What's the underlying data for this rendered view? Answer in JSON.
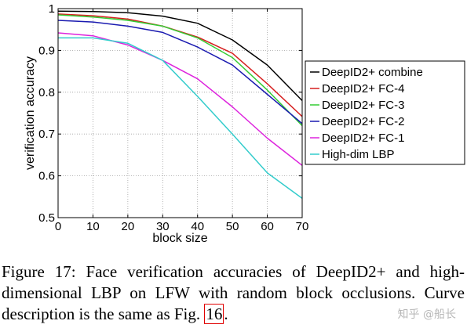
{
  "chart_data": {
    "type": "line",
    "xlabel": "block size",
    "ylabel": "verification accuracy",
    "xlim": [
      0,
      70
    ],
    "ylim": [
      0.5,
      1
    ],
    "x_ticks": [
      "0",
      "10",
      "20",
      "30",
      "40",
      "50",
      "60",
      "70"
    ],
    "y_ticks": [
      "0.5",
      "0.6",
      "0.7",
      "0.8",
      "0.9",
      "1"
    ],
    "grid": true,
    "legend_position": "right",
    "x": [
      0,
      10,
      20,
      30,
      40,
      50,
      60,
      70
    ],
    "series": [
      {
        "name": "DeepID2+ combine",
        "color": "#000000",
        "values": [
          0.994,
          0.993,
          0.99,
          0.982,
          0.965,
          0.925,
          0.865,
          0.78
        ]
      },
      {
        "name": "DeepID2+ FC-4",
        "color": "#d62020",
        "values": [
          0.987,
          0.983,
          0.975,
          0.958,
          0.932,
          0.893,
          0.82,
          0.742
        ]
      },
      {
        "name": "DeepID2+ FC-3",
        "color": "#33cc33",
        "values": [
          0.985,
          0.98,
          0.972,
          0.958,
          0.93,
          0.883,
          0.805,
          0.72
        ]
      },
      {
        "name": "DeepID2+ FC-2",
        "color": "#1a1ab0",
        "values": [
          0.972,
          0.968,
          0.958,
          0.943,
          0.908,
          0.865,
          0.795,
          0.725
        ]
      },
      {
        "name": "DeepID2+ FC-1",
        "color": "#dd22dd",
        "values": [
          0.942,
          0.935,
          0.913,
          0.876,
          0.832,
          0.765,
          0.69,
          0.625
        ]
      },
      {
        "name": "High-dim LBP",
        "color": "#33cccc",
        "values": [
          0.93,
          0.93,
          0.917,
          0.876,
          0.79,
          0.7,
          0.607,
          0.546
        ]
      }
    ]
  },
  "caption": {
    "text": "Figure 17: Face verification accuracies of DeepID2+ and high-dimensional LBP on LFW with random block occlusions. Curve description is the same as Fig. ",
    "ref": "16",
    "end": "."
  },
  "watermark": "知乎 @船长"
}
